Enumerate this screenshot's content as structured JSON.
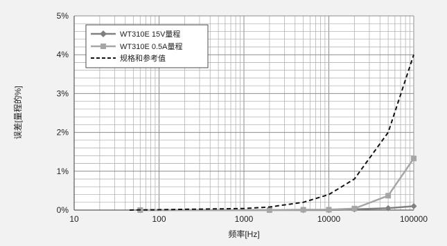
{
  "chart_data": {
    "type": "line",
    "xlabel": "频率[Hz]",
    "ylabel": "误差[量程的%]",
    "x_scale": "log",
    "xlim": [
      10,
      100000
    ],
    "ylim": [
      0,
      5
    ],
    "grid": true,
    "legend_position": "top-left",
    "x_ticks": [
      "10",
      "100",
      "1000",
      "10000",
      "100000"
    ],
    "y_ticks": [
      "0%",
      "1%",
      "2%",
      "3%",
      "4%",
      "5%"
    ],
    "series": [
      {
        "name": "WT310E 15V量程",
        "color": "#808080",
        "marker": "diamond",
        "style": "solid",
        "x": [
          60,
          2000,
          5000,
          10000,
          20000,
          50000,
          100000
        ],
        "y": [
          0.0,
          0.0,
          0.0,
          0.0,
          0.02,
          0.05,
          0.1
        ]
      },
      {
        "name": "WT310E 0.5A量程",
        "color": "#a6a6a6",
        "marker": "square",
        "style": "solid",
        "x": [
          60,
          2000,
          5000,
          10000,
          20000,
          50000,
          100000
        ],
        "y": [
          0.0,
          0.0,
          0.01,
          0.01,
          0.04,
          0.37,
          1.33
        ]
      },
      {
        "name": "规格和参考值",
        "color": "#111111",
        "marker": "none",
        "style": "dashed",
        "x": [
          45,
          100,
          1000,
          2000,
          5000,
          10000,
          20000,
          50000,
          100000
        ],
        "y": [
          0.0,
          0.01,
          0.04,
          0.08,
          0.2,
          0.4,
          0.8,
          2.0,
          4.0
        ]
      }
    ]
  }
}
